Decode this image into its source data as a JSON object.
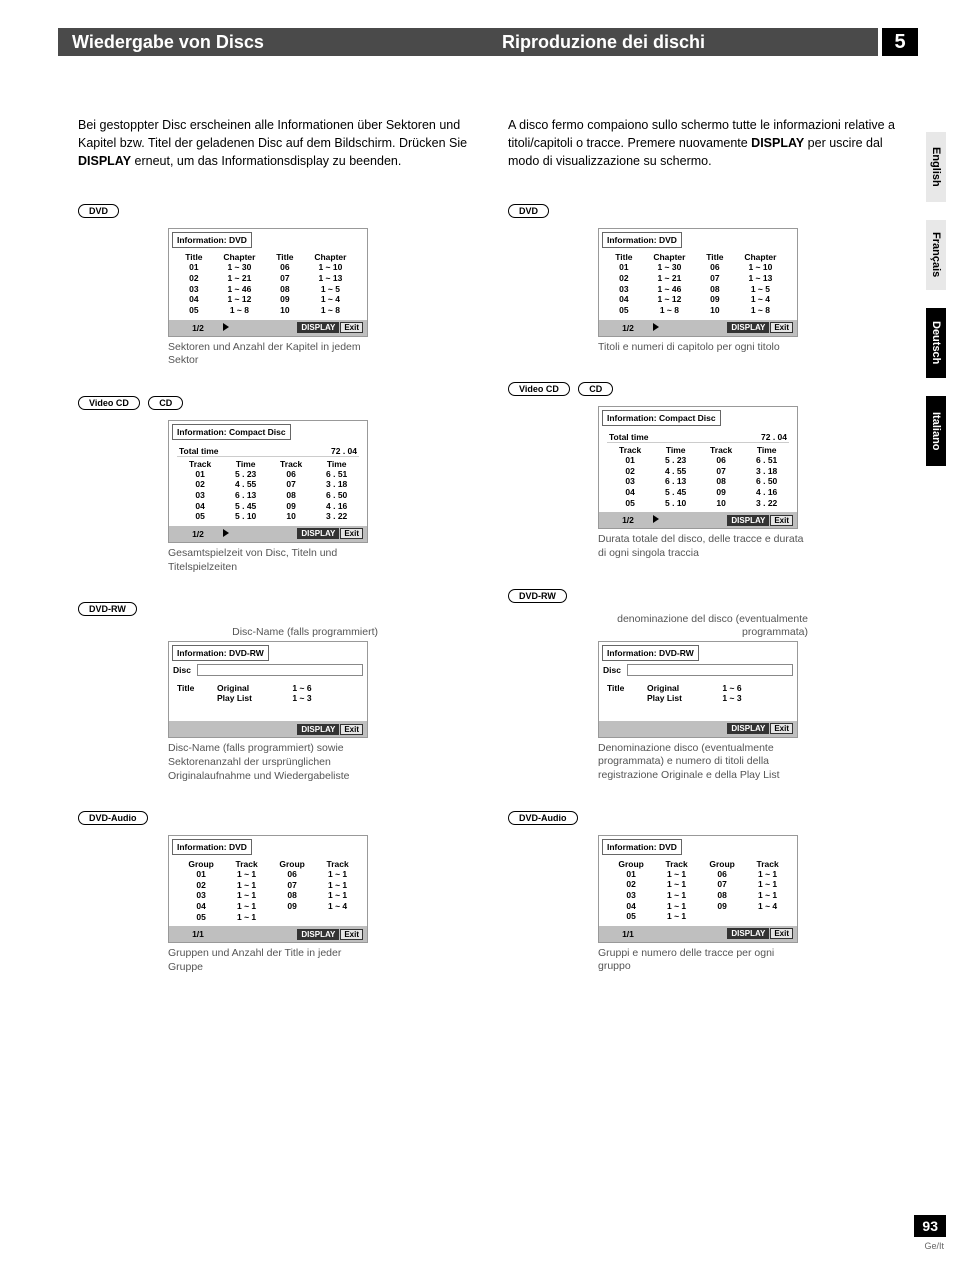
{
  "header": {
    "left": "Wiedergabe von Discs",
    "right": "Riproduzione dei dischi",
    "chapter": "5"
  },
  "side_tabs": [
    {
      "label": "English",
      "dark": false
    },
    {
      "label": "Français",
      "dark": false
    },
    {
      "label": "Deutsch",
      "dark": true
    },
    {
      "label": "Italiano",
      "dark": true
    }
  ],
  "page": {
    "num": "93",
    "sub": "Ge/It"
  },
  "left": {
    "intro_a": "Bei gestoppter Disc erscheinen alle Informationen über Sektoren und Kapitel bzw. Titel der geladenen Disc auf dem Bildschirm. Drücken Sie ",
    "intro_bold": "DISPLAY",
    "intro_b": " erneut, um das Informationsdisplay zu beenden.",
    "dvd": {
      "label": "DVD",
      "panel_title": "Information: DVD",
      "headers": [
        "Title",
        "Chapter",
        "Title",
        "Chapter"
      ],
      "rows": [
        [
          "01",
          "1 ~ 30",
          "06",
          "1 ~ 10"
        ],
        [
          "02",
          "1 ~ 21",
          "07",
          "1 ~ 13"
        ],
        [
          "03",
          "1 ~ 46",
          "08",
          "1 ~ 5"
        ],
        [
          "04",
          "1 ~ 12",
          "09",
          "1 ~ 4"
        ],
        [
          "05",
          "1 ~ 8",
          "10",
          "1 ~ 8"
        ]
      ],
      "page": "1/2",
      "caption": "Sektoren und Anzahl der Kapitel in jedem Sektor"
    },
    "cd": {
      "label1": "Video CD",
      "label2": "CD",
      "panel_title": "Information: Compact Disc",
      "total_label": "Total time",
      "total_val": "72 . 04",
      "headers": [
        "Track",
        "Time",
        "Track",
        "Time"
      ],
      "rows": [
        [
          "01",
          "5 . 23",
          "06",
          "6 . 51"
        ],
        [
          "02",
          "4 . 55",
          "07",
          "3 . 18"
        ],
        [
          "03",
          "6 . 13",
          "08",
          "6 . 50"
        ],
        [
          "04",
          "5 . 45",
          "09",
          "4 . 16"
        ],
        [
          "05",
          "5 . 10",
          "10",
          "3 . 22"
        ]
      ],
      "page": "1/2",
      "caption": "Gesamtspielzeit von Disc, Titeln und Titelspielzeiten"
    },
    "rw": {
      "label": "DVD-RW",
      "caption_above": "Disc-Name (falls programmiert)",
      "panel_title": "Information: DVD-RW",
      "disc_label": "Disc",
      "title_label": "Title",
      "orig": "Original",
      "play": "Play List",
      "v1": "1 ~ 6",
      "v2": "1 ~ 3",
      "caption": "Disc-Name (falls programmiert) sowie Sektorenanzahl der ursprünglichen Originalaufnahme und Wiedergabeliste"
    },
    "audio": {
      "label": "DVD-Audio",
      "panel_title": "Information: DVD",
      "headers": [
        "Group",
        "Track",
        "Group",
        "Track"
      ],
      "rows": [
        [
          "01",
          "1 ~ 1",
          "06",
          "1 ~ 1"
        ],
        [
          "02",
          "1 ~ 1",
          "07",
          "1 ~ 1"
        ],
        [
          "03",
          "1 ~ 1",
          "08",
          "1 ~ 1"
        ],
        [
          "04",
          "1 ~ 1",
          "09",
          "1 ~ 4"
        ],
        [
          "05",
          "1 ~ 1",
          "",
          ""
        ]
      ],
      "page": "1/1",
      "caption": "Gruppen und Anzahl der Title in jeder Gruppe"
    },
    "btn_display": "DISPLAY",
    "btn_exit": "Exit"
  },
  "right": {
    "intro_a": "A disco fermo compaiono sullo schermo tutte le informazioni relative a titoli/capitoli o tracce. Premere nuovamente ",
    "intro_bold": "DISPLAY",
    "intro_b": " per uscire dal modo di visualizzazione su schermo.",
    "dvd": {
      "label": "DVD",
      "panel_title": "Information: DVD",
      "headers": [
        "Title",
        "Chapter",
        "Title",
        "Chapter"
      ],
      "rows": [
        [
          "01",
          "1 ~ 30",
          "06",
          "1 ~ 10"
        ],
        [
          "02",
          "1 ~ 21",
          "07",
          "1 ~ 13"
        ],
        [
          "03",
          "1 ~ 46",
          "08",
          "1 ~ 5"
        ],
        [
          "04",
          "1 ~ 12",
          "09",
          "1 ~ 4"
        ],
        [
          "05",
          "1 ~ 8",
          "10",
          "1 ~ 8"
        ]
      ],
      "page": "1/2",
      "caption": "Titoli e numeri di capitolo per ogni titolo"
    },
    "cd": {
      "label1": "Video CD",
      "label2": "CD",
      "panel_title": "Information: Compact Disc",
      "total_label": "Total time",
      "total_val": "72 . 04",
      "headers": [
        "Track",
        "Time",
        "Track",
        "Time"
      ],
      "rows": [
        [
          "01",
          "5 . 23",
          "06",
          "6 . 51"
        ],
        [
          "02",
          "4 . 55",
          "07",
          "3 . 18"
        ],
        [
          "03",
          "6 . 13",
          "08",
          "6 . 50"
        ],
        [
          "04",
          "5 . 45",
          "09",
          "4 . 16"
        ],
        [
          "05",
          "5 . 10",
          "10",
          "3 . 22"
        ]
      ],
      "page": "1/2",
      "caption": "Durata totale del disco, delle tracce e durata di ogni singola traccia"
    },
    "rw": {
      "label": "DVD-RW",
      "caption_above": "denominazione del disco (eventualmente programmata)",
      "panel_title": "Information: DVD-RW",
      "disc_label": "Disc",
      "title_label": "Title",
      "orig": "Original",
      "play": "Play List",
      "v1": "1 ~ 6",
      "v2": "1 ~ 3",
      "caption": "Denominazione disco (eventualmente programmata) e numero di titoli della registrazione Originale e della Play List"
    },
    "audio": {
      "label": "DVD-Audio",
      "panel_title": "Information: DVD",
      "headers": [
        "Group",
        "Track",
        "Group",
        "Track"
      ],
      "rows": [
        [
          "01",
          "1 ~ 1",
          "06",
          "1 ~ 1"
        ],
        [
          "02",
          "1 ~ 1",
          "07",
          "1 ~ 1"
        ],
        [
          "03",
          "1 ~ 1",
          "08",
          "1 ~ 1"
        ],
        [
          "04",
          "1 ~ 1",
          "09",
          "1 ~ 4"
        ],
        [
          "05",
          "1 ~ 1",
          "",
          ""
        ]
      ],
      "page": "1/1",
      "caption": "Gruppi e numero delle tracce per ogni gruppo"
    },
    "btn_display": "DISPLAY",
    "btn_exit": "Exit"
  }
}
